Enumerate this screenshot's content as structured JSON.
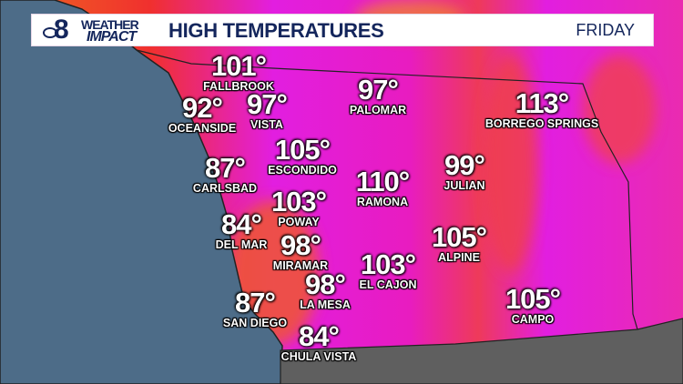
{
  "header": {
    "logo": "8 WEATHER IMPACT",
    "logo_number": "8",
    "logo_line1": "WEATHER",
    "logo_line2": "IMPACT",
    "title": "HIGH TEMPERATURES",
    "day": "FRIDAY"
  },
  "colors": {
    "ocean": "#4d6c88",
    "hot_inland": "#e21ee0",
    "coastal": "#f0532a",
    "mexico": "#5f5f5f",
    "header_text": "#14265c"
  },
  "cities": [
    {
      "name": "FALLBROOK",
      "temp": "101°"
    },
    {
      "name": "OCEANSIDE",
      "temp": "92°"
    },
    {
      "name": "VISTA",
      "temp": "97°"
    },
    {
      "name": "PALOMAR",
      "temp": "97°"
    },
    {
      "name": "BORREGO SPRINGS",
      "temp": "113°"
    },
    {
      "name": "ESCONDIDO",
      "temp": "105°"
    },
    {
      "name": "CARLSBAD",
      "temp": "87°"
    },
    {
      "name": "RAMONA",
      "temp": "110°"
    },
    {
      "name": "JULIAN",
      "temp": "99°"
    },
    {
      "name": "POWAY",
      "temp": "103°"
    },
    {
      "name": "DEL MAR",
      "temp": "84°"
    },
    {
      "name": "MIRAMAR",
      "temp": "98°"
    },
    {
      "name": "ALPINE",
      "temp": "105°"
    },
    {
      "name": "EL CAJON",
      "temp": "103°"
    },
    {
      "name": "LA MESA",
      "temp": "98°"
    },
    {
      "name": "CAMPO",
      "temp": "105°"
    },
    {
      "name": "SAN DIEGO",
      "temp": "87°"
    },
    {
      "name": "CHULA VISTA",
      "temp": "84°"
    }
  ]
}
